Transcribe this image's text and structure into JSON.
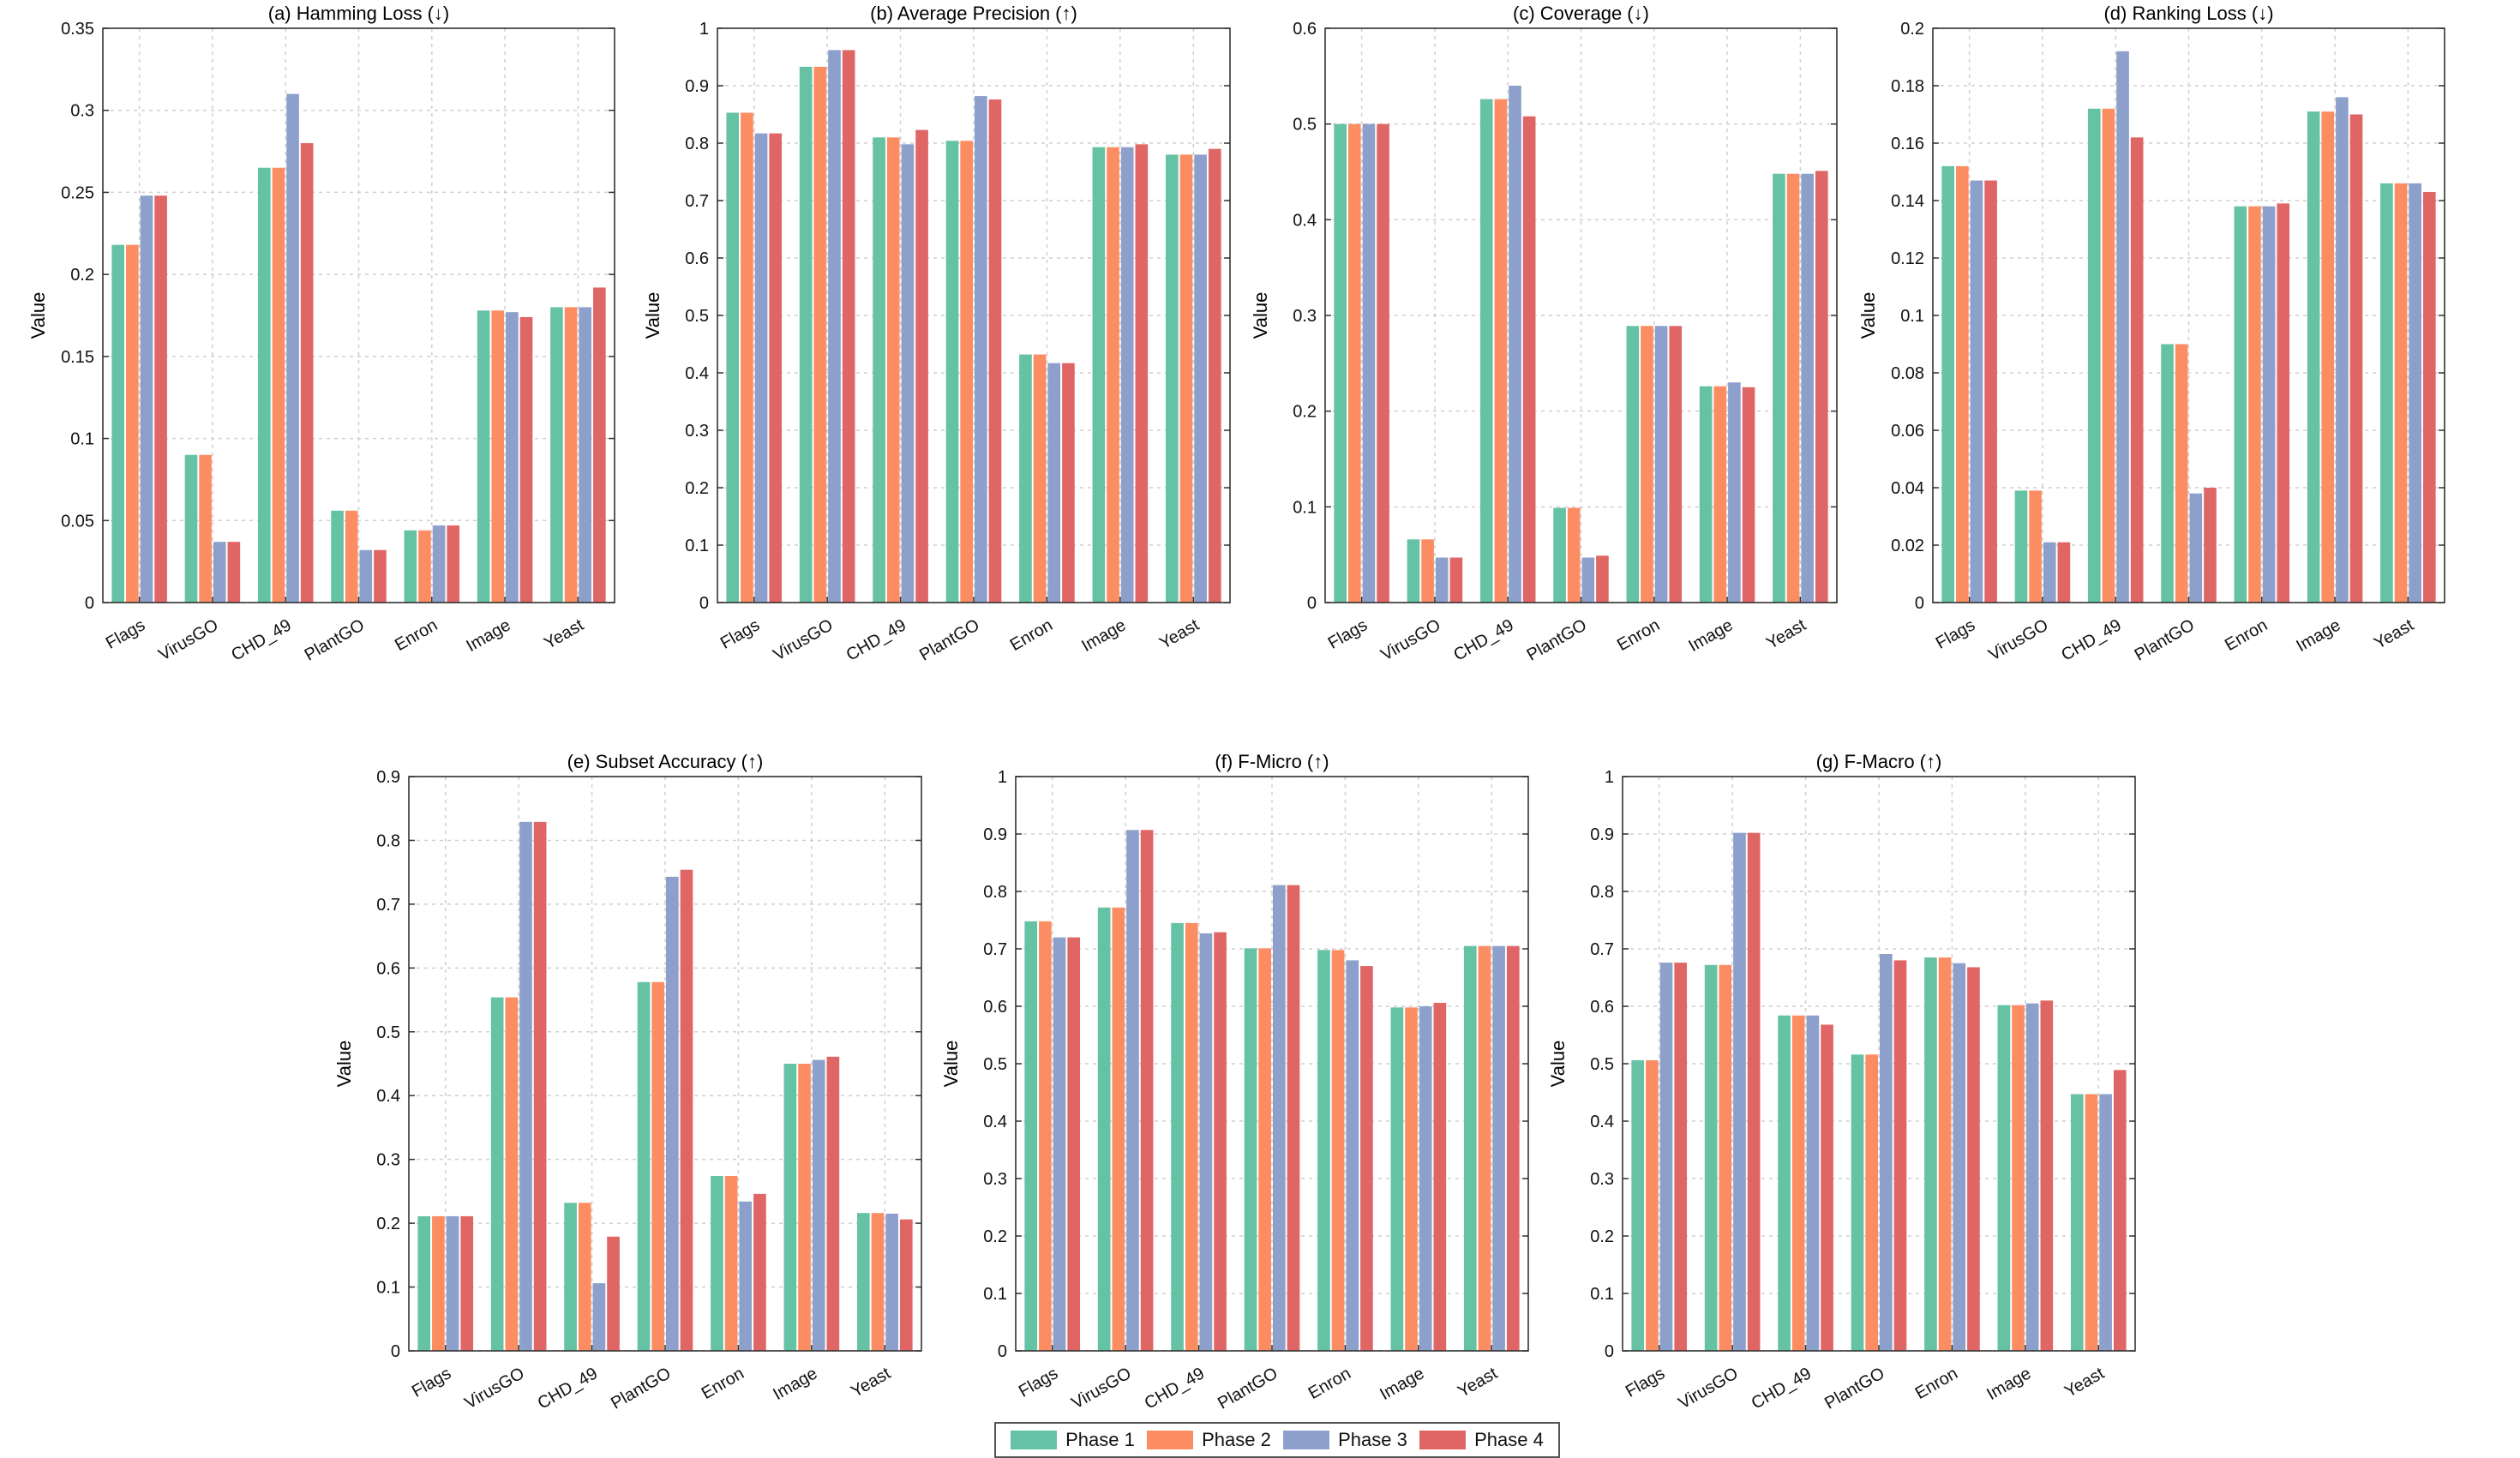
{
  "phases": [
    {
      "name": "Phase 1",
      "color": "#66c2a5"
    },
    {
      "name": "Phase 2",
      "color": "#fc8d62"
    },
    {
      "name": "Phase 3",
      "color": "#8da0cb"
    },
    {
      "name": "Phase 4",
      "color": "#e06666"
    }
  ],
  "chart_data": [
    {
      "type": "bar",
      "title": "(a) Hamming Loss (↓)",
      "ylabel": "Value",
      "xlabel": "",
      "categories": [
        "Flags",
        "VirusGO",
        "CHD_49",
        "PlantGO",
        "Enron",
        "Image",
        "Yeast"
      ],
      "ylim": [
        0,
        0.35
      ],
      "yticks": [
        0,
        0.05,
        0.1,
        0.15,
        0.2,
        0.25,
        0.3,
        0.35
      ],
      "ytick_labels": [
        "0",
        "0.05",
        "0.1",
        "0.15",
        "0.2",
        "0.25",
        "0.3",
        "0.35"
      ],
      "series": [
        {
          "name": "Phase 1",
          "values": [
            0.218,
            0.09,
            0.265,
            0.056,
            0.044,
            0.178,
            0.18
          ]
        },
        {
          "name": "Phase 2",
          "values": [
            0.218,
            0.09,
            0.265,
            0.056,
            0.044,
            0.178,
            0.18
          ]
        },
        {
          "name": "Phase 3",
          "values": [
            0.248,
            0.037,
            0.31,
            0.032,
            0.047,
            0.177,
            0.18
          ]
        },
        {
          "name": "Phase 4",
          "values": [
            0.248,
            0.037,
            0.28,
            0.032,
            0.047,
            0.174,
            0.192
          ]
        }
      ]
    },
    {
      "type": "bar",
      "title": "(b) Average Precision (↑)",
      "ylabel": "Value",
      "xlabel": "",
      "categories": [
        "Flags",
        "VirusGO",
        "CHD_49",
        "PlantGO",
        "Enron",
        "Image",
        "Yeast"
      ],
      "ylim": [
        0,
        1
      ],
      "yticks": [
        0,
        0.1,
        0.2,
        0.3,
        0.4,
        0.5,
        0.6,
        0.7,
        0.8,
        0.9,
        1
      ],
      "ytick_labels": [
        "0",
        "0.1",
        "0.2",
        "0.3",
        "0.4",
        "0.5",
        "0.6",
        "0.7",
        "0.8",
        "0.9",
        "1"
      ],
      "series": [
        {
          "name": "Phase 1",
          "values": [
            0.853,
            0.933,
            0.81,
            0.804,
            0.432,
            0.793,
            0.78
          ]
        },
        {
          "name": "Phase 2",
          "values": [
            0.853,
            0.933,
            0.81,
            0.804,
            0.432,
            0.793,
            0.78
          ]
        },
        {
          "name": "Phase 3",
          "values": [
            0.817,
            0.962,
            0.798,
            0.882,
            0.417,
            0.793,
            0.78
          ]
        },
        {
          "name": "Phase 4",
          "values": [
            0.817,
            0.962,
            0.823,
            0.876,
            0.417,
            0.798,
            0.79
          ]
        }
      ]
    },
    {
      "type": "bar",
      "title": "(c) Coverage (↓)",
      "ylabel": "Value",
      "xlabel": "",
      "categories": [
        "Flags",
        "VirusGO",
        "CHD_49",
        "PlantGO",
        "Enron",
        "Image",
        "Yeast"
      ],
      "ylim": [
        0,
        0.6
      ],
      "yticks": [
        0,
        0.1,
        0.2,
        0.3,
        0.4,
        0.5,
        0.6
      ],
      "ytick_labels": [
        "0",
        "0.1",
        "0.2",
        "0.3",
        "0.4",
        "0.5",
        "0.6"
      ],
      "series": [
        {
          "name": "Phase 1",
          "values": [
            0.5,
            0.066,
            0.526,
            0.099,
            0.289,
            0.226,
            0.448
          ]
        },
        {
          "name": "Phase 2",
          "values": [
            0.5,
            0.066,
            0.526,
            0.099,
            0.289,
            0.226,
            0.448
          ]
        },
        {
          "name": "Phase 3",
          "values": [
            0.5,
            0.047,
            0.54,
            0.047,
            0.289,
            0.23,
            0.448
          ]
        },
        {
          "name": "Phase 4",
          "values": [
            0.5,
            0.047,
            0.508,
            0.049,
            0.289,
            0.225,
            0.451
          ]
        }
      ]
    },
    {
      "type": "bar",
      "title": "(d) Ranking Loss (↓)",
      "ylabel": "Value",
      "xlabel": "",
      "categories": [
        "Flags",
        "VirusGO",
        "CHD_49",
        "PlantGO",
        "Enron",
        "Image",
        "Yeast"
      ],
      "ylim": [
        0,
        0.2
      ],
      "yticks": [
        0,
        0.02,
        0.04,
        0.06,
        0.08,
        0.1,
        0.12,
        0.14,
        0.16,
        0.18,
        0.2
      ],
      "ytick_labels": [
        "0",
        "0.02",
        "0.04",
        "0.06",
        "0.08",
        "0.1",
        "0.12",
        "0.14",
        "0.16",
        "0.18",
        "0.2"
      ],
      "series": [
        {
          "name": "Phase 1",
          "values": [
            0.152,
            0.039,
            0.172,
            0.09,
            0.138,
            0.171,
            0.146
          ]
        },
        {
          "name": "Phase 2",
          "values": [
            0.152,
            0.039,
            0.172,
            0.09,
            0.138,
            0.171,
            0.146
          ]
        },
        {
          "name": "Phase 3",
          "values": [
            0.147,
            0.021,
            0.192,
            0.038,
            0.138,
            0.176,
            0.146
          ]
        },
        {
          "name": "Phase 4",
          "values": [
            0.147,
            0.021,
            0.162,
            0.04,
            0.139,
            0.17,
            0.143
          ]
        }
      ]
    },
    {
      "type": "bar",
      "title": "(e) Subset Accuracy (↑)",
      "ylabel": "Value",
      "xlabel": "",
      "categories": [
        "Flags",
        "VirusGO",
        "CHD_49",
        "PlantGO",
        "Enron",
        "Image",
        "Yeast"
      ],
      "ylim": [
        0,
        0.9
      ],
      "yticks": [
        0,
        0.1,
        0.2,
        0.3,
        0.4,
        0.5,
        0.6,
        0.7,
        0.8,
        0.9
      ],
      "ytick_labels": [
        "0",
        "0.1",
        "0.2",
        "0.3",
        "0.4",
        "0.5",
        "0.6",
        "0.7",
        "0.8",
        "0.9"
      ],
      "series": [
        {
          "name": "Phase 1",
          "values": [
            0.211,
            0.554,
            0.232,
            0.578,
            0.274,
            0.45,
            0.216
          ]
        },
        {
          "name": "Phase 2",
          "values": [
            0.211,
            0.554,
            0.232,
            0.578,
            0.274,
            0.45,
            0.216
          ]
        },
        {
          "name": "Phase 3",
          "values": [
            0.211,
            0.829,
            0.106,
            0.743,
            0.234,
            0.456,
            0.215
          ]
        },
        {
          "name": "Phase 4",
          "values": [
            0.211,
            0.829,
            0.179,
            0.754,
            0.246,
            0.461,
            0.206
          ]
        }
      ]
    },
    {
      "type": "bar",
      "title": "(f) F-Micro (↑)",
      "ylabel": "Value",
      "xlabel": "",
      "categories": [
        "Flags",
        "VirusGO",
        "CHD_49",
        "PlantGO",
        "Enron",
        "Image",
        "Yeast"
      ],
      "ylim": [
        0,
        1
      ],
      "yticks": [
        0,
        0.1,
        0.2,
        0.3,
        0.4,
        0.5,
        0.6,
        0.7,
        0.8,
        0.9,
        1
      ],
      "ytick_labels": [
        "0",
        "0.1",
        "0.2",
        "0.3",
        "0.4",
        "0.5",
        "0.6",
        "0.7",
        "0.8",
        "0.9",
        "1"
      ],
      "series": [
        {
          "name": "Phase 1",
          "values": [
            0.748,
            0.772,
            0.745,
            0.701,
            0.698,
            0.598,
            0.705
          ]
        },
        {
          "name": "Phase 2",
          "values": [
            0.748,
            0.772,
            0.745,
            0.701,
            0.698,
            0.598,
            0.705
          ]
        },
        {
          "name": "Phase 3",
          "values": [
            0.72,
            0.907,
            0.727,
            0.811,
            0.68,
            0.6,
            0.705
          ]
        },
        {
          "name": "Phase 4",
          "values": [
            0.72,
            0.907,
            0.729,
            0.811,
            0.67,
            0.606,
            0.705
          ]
        }
      ]
    },
    {
      "type": "bar",
      "title": "(g) F-Macro (↑)",
      "ylabel": "Value",
      "xlabel": "",
      "categories": [
        "Flags",
        "VirusGO",
        "CHD_49",
        "PlantGO",
        "Enron",
        "Image",
        "Yeast"
      ],
      "ylim": [
        0,
        1
      ],
      "yticks": [
        0,
        0.1,
        0.2,
        0.3,
        0.4,
        0.5,
        0.6,
        0.7,
        0.8,
        0.9,
        1
      ],
      "ytick_labels": [
        "0",
        "0.1",
        "0.2",
        "0.3",
        "0.4",
        "0.5",
        "0.6",
        "0.7",
        "0.8",
        "0.9",
        "1"
      ],
      "series": [
        {
          "name": "Phase 1",
          "values": [
            0.506,
            0.672,
            0.584,
            0.516,
            0.685,
            0.602,
            0.447
          ]
        },
        {
          "name": "Phase 2",
          "values": [
            0.506,
            0.672,
            0.584,
            0.516,
            0.685,
            0.602,
            0.447
          ]
        },
        {
          "name": "Phase 3",
          "values": [
            0.676,
            0.902,
            0.584,
            0.691,
            0.675,
            0.605,
            0.447
          ]
        },
        {
          "name": "Phase 4",
          "values": [
            0.676,
            0.902,
            0.568,
            0.68,
            0.668,
            0.61,
            0.489
          ]
        }
      ]
    }
  ]
}
